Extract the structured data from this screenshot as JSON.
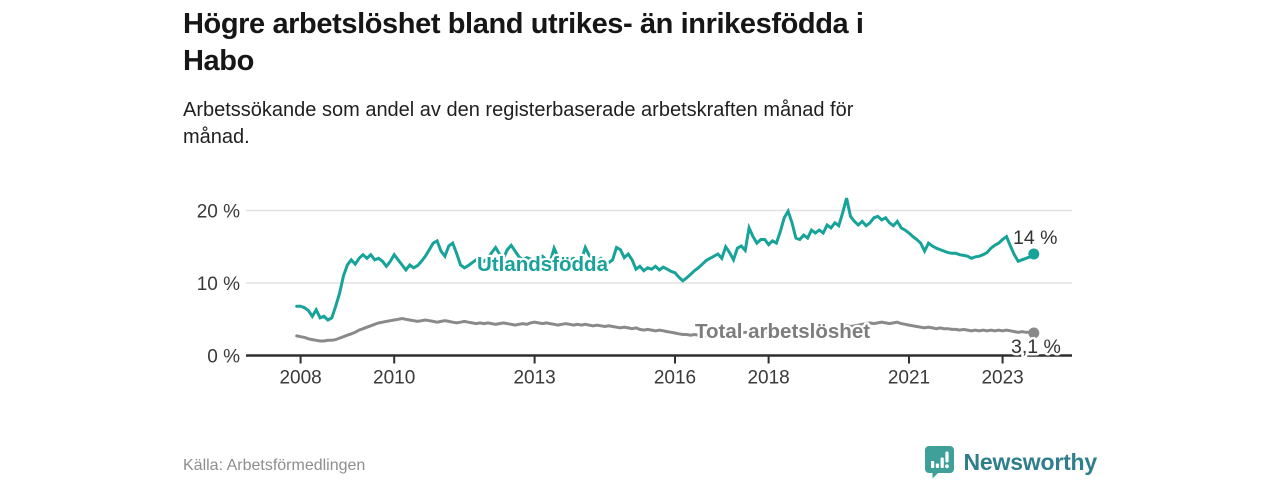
{
  "header": {
    "title_lines": [
      "Högre arbetslöshet bland utrikes- än inrikesfödda i",
      "Habo"
    ],
    "subtitle_lines": [
      "Arbetssökande som andel av den registerbaserade arbetskraften månad för",
      "månad."
    ]
  },
  "footer": {
    "source": "Källa: Arbetsförmedlingen",
    "logo_text": "Newsworthy"
  },
  "colors": {
    "accent_teal": "#17a29a",
    "line_gray": "#8a8a8a",
    "series_label_gray": "#7d7d7d",
    "axis": "#2f2f2f",
    "grid": "#e2e2e2",
    "tick_text": "#3a3a3a",
    "end_label_text": "#333333",
    "logo_icon": "#3fa09a",
    "logo_text": "#2e7e8c"
  },
  "chart_data": {
    "type": "line",
    "title": "Högre arbetslöshet bland utrikes- än inrikesfödda i Habo",
    "subtitle": "Arbetssökande som andel av den registerbaserade arbetskraften månad för månad.",
    "xlabel": "",
    "ylabel": "",
    "x_start_year": 2007.9167,
    "x_step_years": 0.08333,
    "ylim": [
      0,
      22
    ],
    "grid": "horizontal",
    "legend_position": "inline-on-lines",
    "yticks": [
      0,
      10,
      20
    ],
    "ytick_labels": [
      "0 %",
      "10 %",
      "20 %"
    ],
    "xticks": [
      2008,
      2010,
      2013,
      2016,
      2018,
      2021,
      2023
    ],
    "xtick_labels": [
      "2008",
      "2010",
      "2013",
      "2016",
      "2018",
      "2021",
      "2023"
    ],
    "series": [
      {
        "name": "Utlandsfödda",
        "color": "#17a29a",
        "end_label": "14 %",
        "end_value": 14.0,
        "values": [
          6.8,
          6.8,
          6.6,
          6.2,
          5.4,
          6.3,
          5.2,
          5.4,
          4.9,
          5.2,
          6.8,
          8.6,
          11.0,
          12.5,
          13.2,
          12.6,
          13.4,
          13.9,
          13.4,
          13.9,
          13.2,
          13.4,
          13.0,
          12.3,
          13.0,
          13.9,
          13.2,
          12.5,
          11.8,
          12.5,
          12.1,
          12.4,
          13.0,
          13.7,
          14.6,
          15.5,
          15.8,
          14.4,
          13.7,
          15.1,
          15.5,
          14.1,
          12.5,
          12.1,
          12.4,
          12.8,
          13.2,
          13.4,
          13.0,
          13.4,
          14.2,
          14.9,
          14.0,
          13.4,
          14.6,
          15.2,
          14.4,
          13.6,
          13.2,
          13.5,
          13.3,
          13.0,
          13.4,
          13.7,
          13.2,
          12.9,
          14.8,
          13.6,
          13.1,
          12.8,
          13.2,
          13.4,
          13.0,
          13.2,
          14.9,
          13.8,
          13.3,
          13.0,
          13.4,
          13.1,
          12.8,
          13.2,
          14.9,
          14.6,
          13.5,
          14.0,
          13.2,
          11.9,
          12.3,
          11.7,
          12.1,
          11.9,
          12.3,
          11.8,
          12.2,
          11.9,
          11.6,
          11.4,
          10.8,
          10.3,
          10.7,
          11.2,
          11.7,
          12.1,
          12.6,
          13.1,
          13.4,
          13.7,
          14.0,
          13.4,
          15.0,
          14.2,
          13.2,
          14.8,
          15.1,
          14.5,
          17.6,
          16.4,
          15.5,
          16.0,
          16.0,
          15.3,
          15.8,
          15.5,
          17.1,
          19.0,
          19.9,
          18.3,
          16.2,
          16.0,
          16.6,
          16.2,
          17.3,
          16.9,
          17.3,
          16.9,
          18.0,
          17.6,
          18.3,
          17.9,
          19.7,
          21.7,
          19.2,
          18.5,
          18.0,
          18.5,
          17.9,
          18.3,
          19.0,
          19.2,
          18.7,
          19.0,
          18.3,
          17.9,
          18.5,
          17.6,
          17.3,
          16.9,
          16.4,
          16.0,
          15.5,
          14.4,
          15.5,
          15.1,
          14.8,
          14.6,
          14.4,
          14.2,
          14.1,
          14.1,
          13.9,
          13.8,
          13.7,
          13.4,
          13.6,
          13.7,
          13.9,
          14.2,
          14.8,
          15.2,
          15.5,
          16.0,
          16.4,
          15.1,
          13.9,
          13.0,
          13.2,
          13.4,
          13.6,
          14.0
        ]
      },
      {
        "name": "Total arbetslöshet",
        "color": "#8a8a8a",
        "end_label": "3,1 %",
        "end_value": 3.1,
        "values": [
          2.7,
          2.6,
          2.5,
          2.3,
          2.2,
          2.1,
          2.0,
          2.0,
          2.1,
          2.1,
          2.2,
          2.4,
          2.6,
          2.8,
          3.0,
          3.2,
          3.5,
          3.7,
          3.9,
          4.1,
          4.3,
          4.5,
          4.6,
          4.7,
          4.8,
          4.9,
          5.0,
          5.1,
          5.0,
          4.9,
          4.8,
          4.7,
          4.8,
          4.9,
          4.8,
          4.7,
          4.6,
          4.7,
          4.8,
          4.7,
          4.6,
          4.5,
          4.6,
          4.7,
          4.6,
          4.5,
          4.4,
          4.5,
          4.4,
          4.5,
          4.4,
          4.3,
          4.4,
          4.5,
          4.4,
          4.3,
          4.2,
          4.3,
          4.4,
          4.3,
          4.5,
          4.6,
          4.5,
          4.4,
          4.5,
          4.4,
          4.3,
          4.2,
          4.3,
          4.4,
          4.3,
          4.2,
          4.3,
          4.2,
          4.3,
          4.2,
          4.1,
          4.2,
          4.1,
          4.0,
          4.1,
          4.0,
          3.9,
          3.8,
          3.9,
          3.8,
          3.7,
          3.8,
          3.6,
          3.5,
          3.6,
          3.5,
          3.4,
          3.5,
          3.4,
          3.3,
          3.2,
          3.1,
          3.0,
          2.9,
          2.9,
          2.8,
          2.9,
          2.8,
          2.7,
          2.8,
          2.9,
          2.8,
          2.9,
          3.0,
          2.9,
          3.0,
          3.1,
          3.0,
          3.1,
          3.2,
          3.1,
          3.2,
          3.3,
          3.2,
          3.3,
          3.3,
          3.2,
          3.3,
          3.4,
          3.3,
          3.4,
          3.5,
          3.4,
          3.5,
          3.4,
          3.5,
          3.6,
          3.5,
          3.6,
          3.7,
          3.6,
          3.7,
          3.8,
          3.9,
          4.0,
          4.1,
          4.0,
          4.1,
          4.2,
          4.3,
          4.4,
          4.5,
          4.4,
          4.5,
          4.6,
          4.5,
          4.4,
          4.5,
          4.6,
          4.4,
          4.3,
          4.2,
          4.1,
          4.0,
          3.9,
          3.8,
          3.9,
          3.8,
          3.7,
          3.8,
          3.7,
          3.7,
          3.6,
          3.6,
          3.5,
          3.6,
          3.5,
          3.4,
          3.5,
          3.4,
          3.5,
          3.4,
          3.5,
          3.4,
          3.5,
          3.4,
          3.5,
          3.4,
          3.3,
          3.2,
          3.3,
          3.2,
          3.2,
          3.1
        ]
      }
    ],
    "source": "Källa: Arbetsförmedlingen"
  }
}
